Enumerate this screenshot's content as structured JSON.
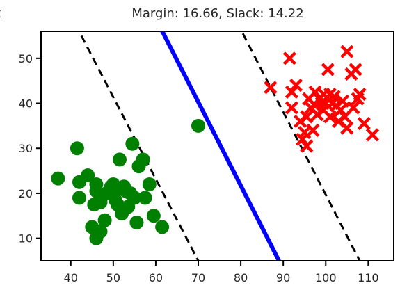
{
  "chart_data": {
    "type": "scatter",
    "title": "Margin: 16.66, Slack: 14.22",
    "title_prefix_glyph": "t",
    "xlabel": "",
    "ylabel": "",
    "xlim": [
      33,
      116
    ],
    "ylim": [
      5,
      56
    ],
    "x_ticks": [
      40,
      50,
      60,
      70,
      80,
      90,
      100,
      110
    ],
    "y_ticks": [
      10,
      20,
      30,
      40,
      50
    ],
    "grid": false,
    "series": [
      {
        "marker": "circle",
        "color": "#008000",
        "points": [
          [
            37,
            23.3
          ],
          [
            41.5,
            30
          ],
          [
            42,
            22.5
          ],
          [
            42,
            19
          ],
          [
            44,
            24
          ],
          [
            45,
            12.5
          ],
          [
            45.5,
            17.5
          ],
          [
            46,
            20.5
          ],
          [
            46,
            22
          ],
          [
            46,
            10
          ],
          [
            47,
            11.5
          ],
          [
            47,
            18
          ],
          [
            47.5,
            19.5
          ],
          [
            48,
            14
          ],
          [
            48.5,
            20
          ],
          [
            49,
            20.5
          ],
          [
            49.5,
            21.5
          ],
          [
            50,
            22
          ],
          [
            50.5,
            18.5
          ],
          [
            51,
            21
          ],
          [
            51,
            17.5
          ],
          [
            51.5,
            27.5
          ],
          [
            52,
            15.5
          ],
          [
            52.5,
            21.5
          ],
          [
            53,
            20.5
          ],
          [
            53.5,
            17
          ],
          [
            54,
            20
          ],
          [
            54.5,
            31
          ],
          [
            55,
            19
          ],
          [
            55.5,
            13.5
          ],
          [
            56,
            26
          ],
          [
            57,
            27.5
          ],
          [
            57.5,
            19
          ],
          [
            58.5,
            22
          ],
          [
            59.5,
            15
          ],
          [
            61.5,
            12.5
          ],
          [
            70,
            35
          ]
        ]
      },
      {
        "marker": "x",
        "color": "#ff0000",
        "points": [
          [
            87,
            43.5
          ],
          [
            91.5,
            50
          ],
          [
            92,
            42.5
          ],
          [
            92,
            39
          ],
          [
            93,
            44
          ],
          [
            94,
            36
          ],
          [
            94.5,
            32
          ],
          [
            95,
            33.5
          ],
          [
            95.5,
            30.5
          ],
          [
            95.5,
            37
          ],
          [
            96,
            41
          ],
          [
            96.5,
            39
          ],
          [
            97,
            34
          ],
          [
            97.5,
            42.5
          ],
          [
            97.5,
            39.5
          ],
          [
            98,
            37.5
          ],
          [
            98.5,
            41
          ],
          [
            99,
            40
          ],
          [
            99.5,
            42
          ],
          [
            99.5,
            38.5
          ],
          [
            100,
            40
          ],
          [
            100.5,
            47.5
          ],
          [
            101,
            37
          ],
          [
            101,
            42
          ],
          [
            101.5,
            40
          ],
          [
            102,
            41.5
          ],
          [
            102.5,
            39.5
          ],
          [
            103,
            36
          ],
          [
            103.5,
            38.5
          ],
          [
            104,
            40.5
          ],
          [
            104.5,
            37
          ],
          [
            105,
            51.5
          ],
          [
            105,
            34.5
          ],
          [
            106,
            46.5
          ],
          [
            106.5,
            39
          ],
          [
            107,
            47.5
          ],
          [
            107.5,
            41
          ],
          [
            108,
            42
          ],
          [
            109,
            35.5
          ],
          [
            111,
            33
          ]
        ]
      }
    ],
    "lines": [
      {
        "role": "decision-boundary",
        "color": "#0000ff",
        "style": "solid",
        "points": [
          [
            61,
            57
          ],
          [
            89,
            5
          ]
        ]
      },
      {
        "role": "margin-left",
        "color": "#000000",
        "style": "dashed",
        "points": [
          [
            42.5,
            55
          ],
          [
            70,
            5
          ]
        ]
      },
      {
        "role": "margin-right",
        "color": "#000000",
        "style": "dashed",
        "points": [
          [
            80.5,
            55.5
          ],
          [
            108,
            5
          ]
        ]
      }
    ]
  }
}
